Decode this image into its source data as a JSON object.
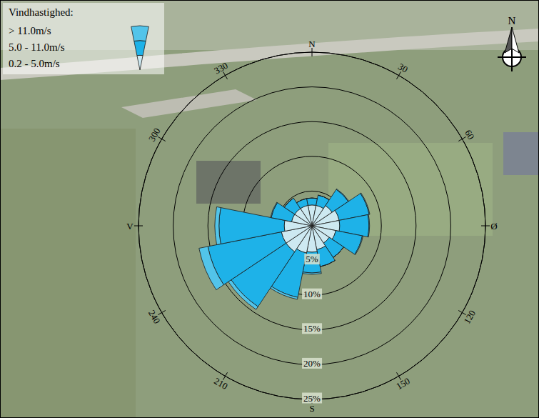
{
  "chart_data": {
    "type": "wind_rose",
    "title": "Vindhastighed:",
    "annotations": [
      "N"
    ],
    "x": [
      0,
      22.5,
      45,
      67.5,
      90,
      112.5,
      135,
      157.5,
      180,
      202.5,
      225,
      247.5,
      270,
      292.5,
      315,
      337.5
    ],
    "xlim": [
      0,
      360
    ],
    "xticks": [
      {
        "value": 0,
        "label": "N"
      },
      30,
      60,
      {
        "value": 90,
        "label": "Ø"
      },
      120,
      150,
      {
        "value": 180,
        "label": "S"
      },
      210,
      240,
      {
        "value": 270,
        "label": "V"
      },
      300,
      330
    ],
    "ylim": [
      0,
      25
    ],
    "yticks": [
      {
        "value": 5,
        "label": "5%"
      },
      {
        "value": 10,
        "label": "10%"
      },
      {
        "value": 15,
        "label": "15%"
      },
      {
        "value": 20,
        "label": "20%"
      },
      {
        "value": 25,
        "label": "25%"
      }
    ],
    "stacked": true,
    "grid": true,
    "legend": "top-left",
    "series": [
      {
        "name": "0.2 - 5.0m/s",
        "color": "#cde9f1",
        "values": [
          3.0,
          3.0,
          3.5,
          4.0,
          4.0,
          3.5,
          3.0,
          3.5,
          3.8,
          4.0,
          4.5,
          4.5,
          4.0,
          3.0,
          3.0,
          3.0
        ]
      },
      {
        "name": "5.0 - 11.0m/s",
        "color": "#1eb2e8",
        "values": [
          1.0,
          1.5,
          2.8,
          4.4,
          4.2,
          3.9,
          2.5,
          2.5,
          3.0,
          6.5,
          9.5,
          10.8,
          9.4,
          3.0,
          1.8,
          1.0
        ]
      },
      {
        "name": "> 11.0m/s",
        "color": "#52c4ea",
        "values": [
          0,
          0,
          0.1,
          0.1,
          0.1,
          0.1,
          0,
          0,
          0.2,
          0.3,
          0.5,
          1.3,
          0.6,
          0.1,
          0,
          0
        ]
      }
    ]
  }
}
